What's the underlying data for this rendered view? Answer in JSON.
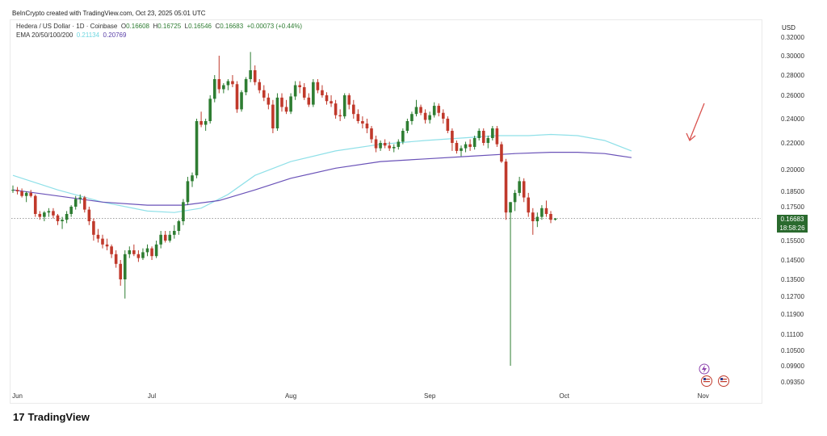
{
  "credit": "BeInCrypto created with TradingView.com, Oct 23, 2025 05:01 UTC",
  "legend": {
    "symbol": "Hedera / US Dollar · 1D · Coinbase",
    "o_label": "O",
    "o_value": "0.16608",
    "h_label": "H",
    "h_value": "0.16725",
    "l_label": "L",
    "l_value": "0.16546",
    "c_label": "C",
    "c_value": "0.16683",
    "change": "+0.00073 (+0.44%)",
    "ema_label": "EMA 20/50/100/200",
    "ema_a": "0.21134",
    "ema_b": "0.20769"
  },
  "axis_unit": "USD",
  "last_price": {
    "value": "0.16683",
    "countdown": "18:58:26"
  },
  "brand": {
    "logo": "17",
    "text": "TradingView"
  },
  "colors": {
    "up": "#2e7d32",
    "down": "#c0392b",
    "ema_light": "#8fe0e8",
    "ema_dark": "#6a52b8",
    "last": "#2a6a2e"
  },
  "chart_data": {
    "type": "candlestick",
    "y_ticks": [
      "0.32000",
      "0.30000",
      "0.28000",
      "0.26000",
      "0.24000",
      "0.22000",
      "0.20000",
      "0.18500",
      "0.17500",
      "0.16683",
      "0.15500",
      "0.14500",
      "0.13500",
      "0.12700",
      "0.11900",
      "0.11100",
      "0.10500",
      "0.09900",
      "0.09350"
    ],
    "x_labels": [
      {
        "label": "Jun",
        "index": 1
      },
      {
        "label": "Jul",
        "index": 31
      },
      {
        "label": "Aug",
        "index": 62
      },
      {
        "label": "Sep",
        "index": 93
      },
      {
        "label": "Oct",
        "index": 123
      },
      {
        "label": "Nov",
        "index": 154
      }
    ],
    "candles": [
      [
        0.186,
        0.189,
        0.184,
        0.186
      ],
      [
        0.186,
        0.188,
        0.183,
        0.185
      ],
      [
        0.185,
        0.187,
        0.181,
        0.182
      ],
      [
        0.182,
        0.185,
        0.178,
        0.184
      ],
      [
        0.184,
        0.186,
        0.181,
        0.182
      ],
      [
        0.182,
        0.183,
        0.168,
        0.17
      ],
      [
        0.17,
        0.172,
        0.166,
        0.168
      ],
      [
        0.168,
        0.172,
        0.165,
        0.171
      ],
      [
        0.171,
        0.174,
        0.168,
        0.172
      ],
      [
        0.172,
        0.174,
        0.167,
        0.169
      ],
      [
        0.169,
        0.17,
        0.163,
        0.165
      ],
      [
        0.165,
        0.168,
        0.161,
        0.166
      ],
      [
        0.166,
        0.172,
        0.164,
        0.17
      ],
      [
        0.17,
        0.176,
        0.168,
        0.175
      ],
      [
        0.175,
        0.182,
        0.173,
        0.18
      ],
      [
        0.18,
        0.183,
        0.177,
        0.181
      ],
      [
        0.181,
        0.182,
        0.171,
        0.173
      ],
      [
        0.173,
        0.175,
        0.163,
        0.165
      ],
      [
        0.165,
        0.167,
        0.155,
        0.158
      ],
      [
        0.158,
        0.161,
        0.154,
        0.156
      ],
      [
        0.156,
        0.158,
        0.151,
        0.153
      ],
      [
        0.153,
        0.156,
        0.15,
        0.152
      ],
      [
        0.152,
        0.153,
        0.146,
        0.148
      ],
      [
        0.148,
        0.15,
        0.141,
        0.143
      ],
      [
        0.143,
        0.145,
        0.132,
        0.135
      ],
      [
        0.135,
        0.15,
        0.126,
        0.148
      ],
      [
        0.148,
        0.152,
        0.146,
        0.15
      ],
      [
        0.15,
        0.153,
        0.147,
        0.148
      ],
      [
        0.148,
        0.15,
        0.144,
        0.146
      ],
      [
        0.146,
        0.151,
        0.145,
        0.149
      ],
      [
        0.149,
        0.153,
        0.147,
        0.151
      ],
      [
        0.151,
        0.152,
        0.145,
        0.147
      ],
      [
        0.147,
        0.155,
        0.146,
        0.153
      ],
      [
        0.153,
        0.16,
        0.151,
        0.158
      ],
      [
        0.158,
        0.16,
        0.154,
        0.155
      ],
      [
        0.155,
        0.16,
        0.154,
        0.158
      ],
      [
        0.158,
        0.163,
        0.156,
        0.16
      ],
      [
        0.16,
        0.166,
        0.158,
        0.165
      ],
      [
        0.165,
        0.18,
        0.163,
        0.178
      ],
      [
        0.178,
        0.195,
        0.176,
        0.192
      ],
      [
        0.192,
        0.198,
        0.188,
        0.196
      ],
      [
        0.196,
        0.24,
        0.194,
        0.238
      ],
      [
        0.238,
        0.246,
        0.233,
        0.235
      ],
      [
        0.235,
        0.24,
        0.23,
        0.238
      ],
      [
        0.238,
        0.26,
        0.236,
        0.257
      ],
      [
        0.257,
        0.28,
        0.254,
        0.276
      ],
      [
        0.276,
        0.3,
        0.262,
        0.266
      ],
      [
        0.266,
        0.272,
        0.262,
        0.27
      ],
      [
        0.27,
        0.276,
        0.265,
        0.274
      ],
      [
        0.274,
        0.28,
        0.268,
        0.271
      ],
      [
        0.271,
        0.274,
        0.245,
        0.248
      ],
      [
        0.248,
        0.265,
        0.246,
        0.263
      ],
      [
        0.263,
        0.278,
        0.26,
        0.276
      ],
      [
        0.276,
        0.304,
        0.273,
        0.285
      ],
      [
        0.285,
        0.29,
        0.27,
        0.273
      ],
      [
        0.273,
        0.276,
        0.262,
        0.265
      ],
      [
        0.265,
        0.27,
        0.255,
        0.258
      ],
      [
        0.258,
        0.262,
        0.248,
        0.252
      ],
      [
        0.252,
        0.256,
        0.228,
        0.232
      ],
      [
        0.232,
        0.262,
        0.23,
        0.258
      ],
      [
        0.258,
        0.262,
        0.246,
        0.25
      ],
      [
        0.25,
        0.256,
        0.244,
        0.246
      ],
      [
        0.246,
        0.262,
        0.244,
        0.259
      ],
      [
        0.259,
        0.274,
        0.256,
        0.27
      ],
      [
        0.27,
        0.274,
        0.262,
        0.268
      ],
      [
        0.268,
        0.272,
        0.256,
        0.258
      ],
      [
        0.258,
        0.262,
        0.25,
        0.252
      ],
      [
        0.252,
        0.276,
        0.25,
        0.273
      ],
      [
        0.273,
        0.276,
        0.262,
        0.265
      ],
      [
        0.265,
        0.27,
        0.258,
        0.26
      ],
      [
        0.26,
        0.263,
        0.252,
        0.255
      ],
      [
        0.255,
        0.26,
        0.25,
        0.253
      ],
      [
        0.253,
        0.256,
        0.24,
        0.243
      ],
      [
        0.243,
        0.248,
        0.238,
        0.242
      ],
      [
        0.242,
        0.262,
        0.24,
        0.26
      ],
      [
        0.26,
        0.262,
        0.248,
        0.252
      ],
      [
        0.252,
        0.256,
        0.24,
        0.244
      ],
      [
        0.244,
        0.248,
        0.236,
        0.238
      ],
      [
        0.238,
        0.242,
        0.232,
        0.236
      ],
      [
        0.236,
        0.24,
        0.228,
        0.232
      ],
      [
        0.232,
        0.234,
        0.22,
        0.223
      ],
      [
        0.223,
        0.226,
        0.213,
        0.216
      ],
      [
        0.216,
        0.222,
        0.214,
        0.22
      ],
      [
        0.22,
        0.223,
        0.216,
        0.218
      ],
      [
        0.218,
        0.221,
        0.214,
        0.216
      ],
      [
        0.216,
        0.219,
        0.213,
        0.217
      ],
      [
        0.217,
        0.223,
        0.215,
        0.221
      ],
      [
        0.221,
        0.232,
        0.219,
        0.23
      ],
      [
        0.23,
        0.24,
        0.228,
        0.238
      ],
      [
        0.238,
        0.246,
        0.235,
        0.244
      ],
      [
        0.244,
        0.256,
        0.242,
        0.25
      ],
      [
        0.25,
        0.252,
        0.243,
        0.245
      ],
      [
        0.245,
        0.248,
        0.236,
        0.239
      ],
      [
        0.239,
        0.246,
        0.236,
        0.243
      ],
      [
        0.243,
        0.254,
        0.241,
        0.251
      ],
      [
        0.251,
        0.253,
        0.242,
        0.245
      ],
      [
        0.245,
        0.248,
        0.236,
        0.24
      ],
      [
        0.24,
        0.242,
        0.228,
        0.23
      ],
      [
        0.23,
        0.232,
        0.214,
        0.22
      ],
      [
        0.22,
        0.222,
        0.212,
        0.214
      ],
      [
        0.214,
        0.218,
        0.21,
        0.216
      ],
      [
        0.216,
        0.221,
        0.213,
        0.219
      ],
      [
        0.219,
        0.223,
        0.214,
        0.217
      ],
      [
        0.217,
        0.226,
        0.215,
        0.224
      ],
      [
        0.224,
        0.232,
        0.222,
        0.23
      ],
      [
        0.23,
        0.232,
        0.218,
        0.22
      ],
      [
        0.22,
        0.226,
        0.216,
        0.224
      ],
      [
        0.224,
        0.234,
        0.222,
        0.232
      ],
      [
        0.232,
        0.234,
        0.217,
        0.219
      ],
      [
        0.219,
        0.221,
        0.205,
        0.206
      ],
      [
        0.206,
        0.208,
        0.166,
        0.171
      ],
      [
        0.171,
        0.178,
        0.099,
        0.178
      ],
      [
        0.178,
        0.186,
        0.172,
        0.184
      ],
      [
        0.184,
        0.195,
        0.182,
        0.192
      ],
      [
        0.192,
        0.194,
        0.178,
        0.181
      ],
      [
        0.181,
        0.184,
        0.168,
        0.171
      ],
      [
        0.171,
        0.174,
        0.158,
        0.165
      ],
      [
        0.165,
        0.171,
        0.162,
        0.168
      ],
      [
        0.168,
        0.176,
        0.166,
        0.174
      ],
      [
        0.174,
        0.179,
        0.168,
        0.17
      ],
      [
        0.17,
        0.172,
        0.164,
        0.166
      ],
      [
        0.16608,
        0.16725,
        0.16546,
        0.16683
      ]
    ],
    "ema_light": [
      [
        0,
        0.196
      ],
      [
        10,
        0.186
      ],
      [
        20,
        0.178
      ],
      [
        30,
        0.172
      ],
      [
        36,
        0.171
      ],
      [
        42,
        0.174
      ],
      [
        48,
        0.183
      ],
      [
        54,
        0.196
      ],
      [
        62,
        0.206
      ],
      [
        72,
        0.214
      ],
      [
        82,
        0.219
      ],
      [
        92,
        0.222
      ],
      [
        100,
        0.224
      ],
      [
        108,
        0.226
      ],
      [
        115,
        0.226
      ],
      [
        120,
        0.227
      ],
      [
        126,
        0.226
      ],
      [
        132,
        0.222
      ],
      [
        138,
        0.214
      ]
    ],
    "ema_dark": [
      [
        0,
        0.186
      ],
      [
        10,
        0.182
      ],
      [
        20,
        0.178
      ],
      [
        30,
        0.176
      ],
      [
        38,
        0.176
      ],
      [
        46,
        0.179
      ],
      [
        54,
        0.186
      ],
      [
        62,
        0.194
      ],
      [
        72,
        0.201
      ],
      [
        82,
        0.206
      ],
      [
        92,
        0.208
      ],
      [
        102,
        0.21
      ],
      [
        112,
        0.212
      ],
      [
        120,
        0.213
      ],
      [
        126,
        0.213
      ],
      [
        132,
        0.212
      ],
      [
        138,
        0.209
      ]
    ],
    "last_price": 0.16683
  }
}
